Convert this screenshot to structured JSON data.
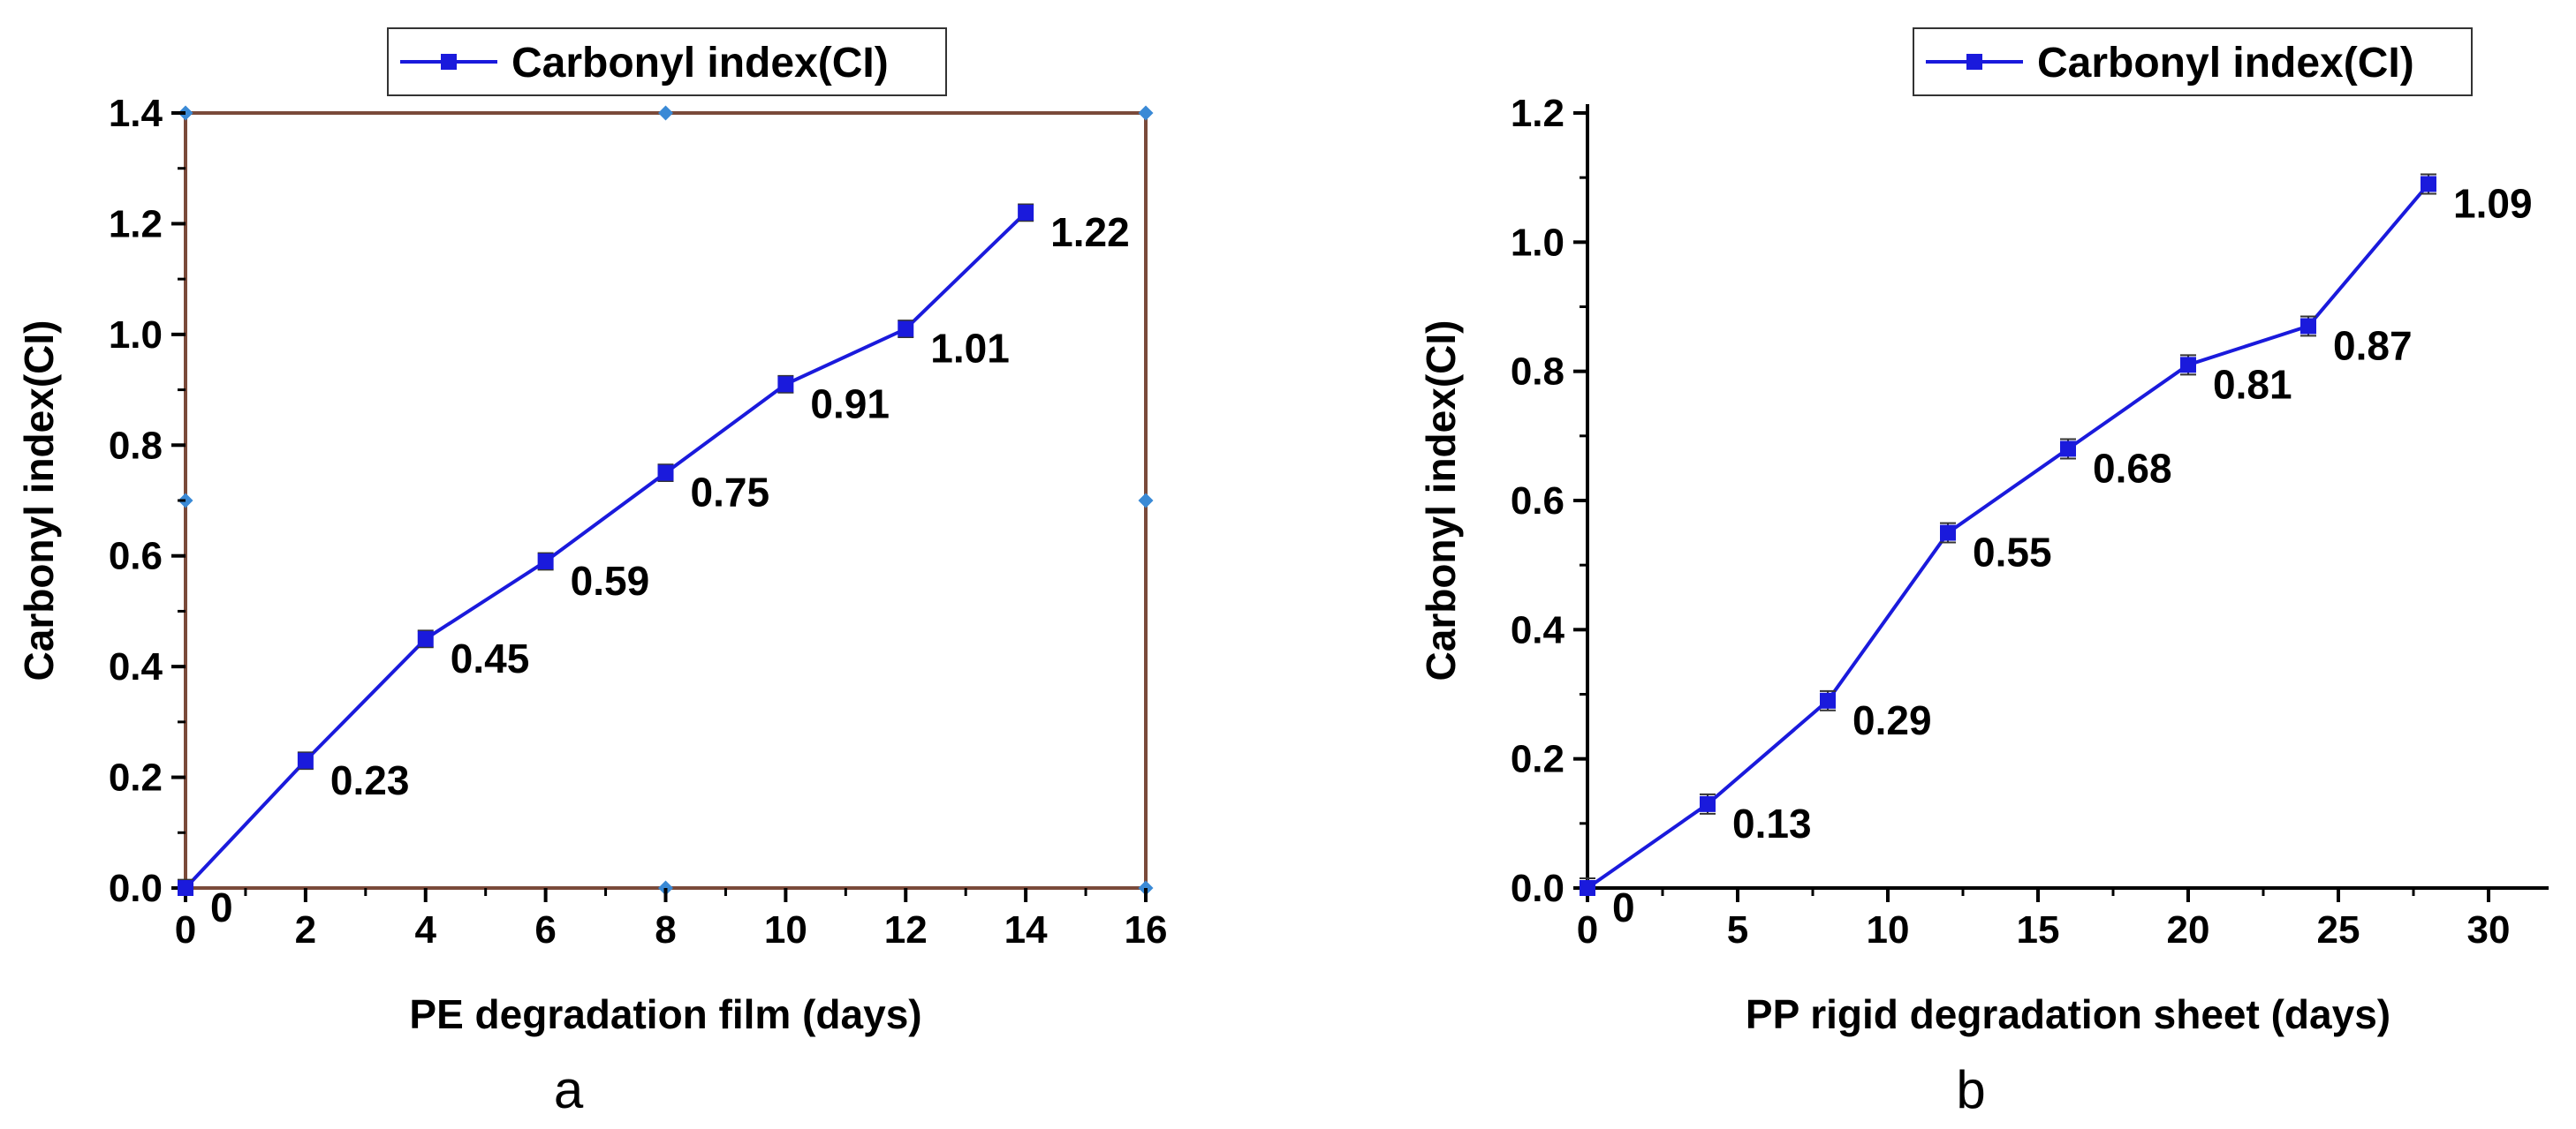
{
  "chart_data": [
    {
      "type": "line",
      "title": "",
      "legend": "Carbonyl index(CI)",
      "xlabel": "PE degradation film (days)",
      "ylabel": "Carbonyl index(CI)",
      "panel_label": "a",
      "xlim": [
        0,
        16
      ],
      "ylim": [
        0,
        1.4
      ],
      "x_ticks": [
        0,
        2,
        4,
        6,
        8,
        10,
        12,
        14,
        16
      ],
      "y_ticks": [
        0.0,
        0.2,
        0.4,
        0.6,
        0.8,
        1.0,
        1.2,
        1.4
      ],
      "x_tick_labels": [
        "0",
        "2",
        "4",
        "6",
        "8",
        "10",
        "12",
        "14",
        "16"
      ],
      "y_tick_labels": [
        "0.0",
        "0.2",
        "0.4",
        "0.6",
        "0.8",
        "1.0",
        "1.2",
        "1.4"
      ],
      "x": [
        0,
        2,
        4,
        6,
        8,
        10,
        12,
        14
      ],
      "y": [
        0,
        0.23,
        0.45,
        0.59,
        0.75,
        0.91,
        1.01,
        1.22
      ],
      "data_labels": [
        "0",
        "0.23",
        "0.45",
        "0.59",
        "0.75",
        "0.91",
        "1.01",
        "1.22"
      ],
      "error": 0.015,
      "frame": "box",
      "series_color": "#1a1adc",
      "frame_color": "#7a4a3a"
    },
    {
      "type": "line",
      "title": "",
      "legend": "Carbonyl index(CI)",
      "xlabel": "PP rigid degradation sheet (days)",
      "ylabel": "Carbonyl index(CI)",
      "panel_label": "b",
      "xlim": [
        0,
        32
      ],
      "ylim": [
        0,
        1.2
      ],
      "x_ticks": [
        0,
        5,
        10,
        15,
        20,
        25,
        30
      ],
      "y_ticks": [
        0.0,
        0.2,
        0.4,
        0.6,
        0.8,
        1.0,
        1.2
      ],
      "x_tick_labels": [
        "0",
        "5",
        "10",
        "15",
        "20",
        "25",
        "30"
      ],
      "y_tick_labels": [
        "0.0",
        "0.2",
        "0.4",
        "0.6",
        "0.8",
        "1.0",
        "1.2"
      ],
      "x": [
        0,
        4,
        8,
        12,
        16,
        20,
        24,
        28
      ],
      "y": [
        0,
        0.13,
        0.29,
        0.55,
        0.68,
        0.81,
        0.87,
        1.09
      ],
      "data_labels": [
        "0",
        "0.13",
        "0.29",
        "0.55",
        "0.68",
        "0.81",
        "0.87",
        "1.09"
      ],
      "error": 0.015,
      "frame": "axes",
      "series_color": "#1a1adc",
      "frame_color": "#000000"
    }
  ]
}
